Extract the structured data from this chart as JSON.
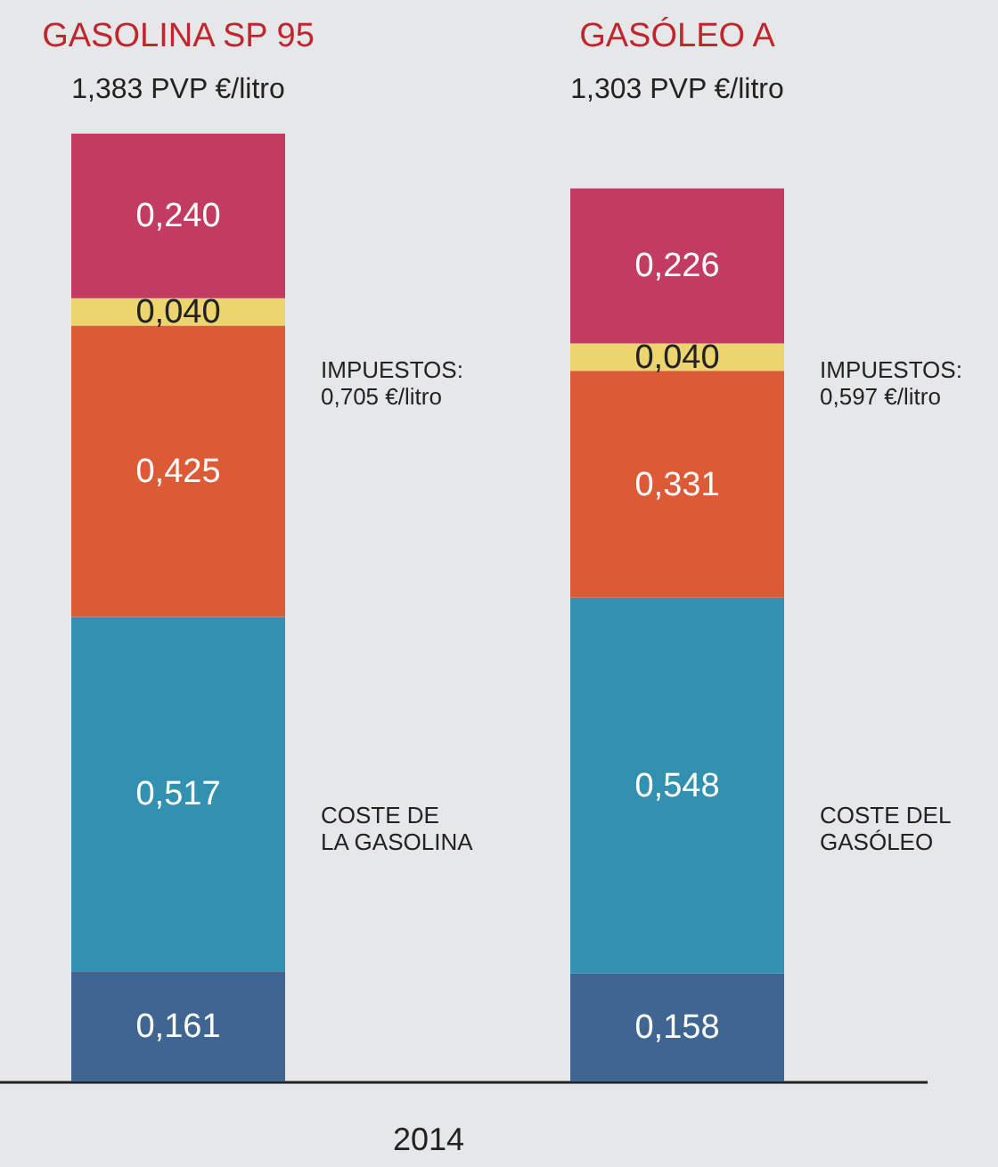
{
  "chart_data": {
    "type": "bar",
    "stacked": true,
    "xlabel": "2014",
    "categories": [
      "GASOLINA SP 95",
      "GASÓLEO A"
    ],
    "totals": [
      "1,383 PVP €/litro",
      "1,303 PVP €/litro"
    ],
    "series": [
      {
        "color": "#3f6690",
        "values": [
          0.161,
          0.158
        ],
        "value_labels": [
          "0,161",
          "0,158"
        ]
      },
      {
        "color": "#3290b0",
        "values": [
          0.517,
          0.548
        ],
        "value_labels": [
          "0,517",
          "0,548"
        ]
      },
      {
        "color": "#dc5a36",
        "values": [
          0.425,
          0.331
        ],
        "value_labels": [
          "0,425",
          "0,331"
        ]
      },
      {
        "color": "#ecd46e",
        "values": [
          0.04,
          0.04
        ],
        "value_labels": [
          "0,040",
          "0,040"
        ]
      },
      {
        "color": "#c23c62",
        "values": [
          0.24,
          0.226
        ],
        "value_labels": [
          "0,240",
          "0,226"
        ]
      }
    ],
    "annotations": [
      "IMPUESTOS:\n0,705 €/litro",
      "COSTE DE\nLA GASOLINA",
      "IMPUESTOS:\n0,597 €/litro",
      "COSTE DEL\nGASÓLEO"
    ]
  }
}
